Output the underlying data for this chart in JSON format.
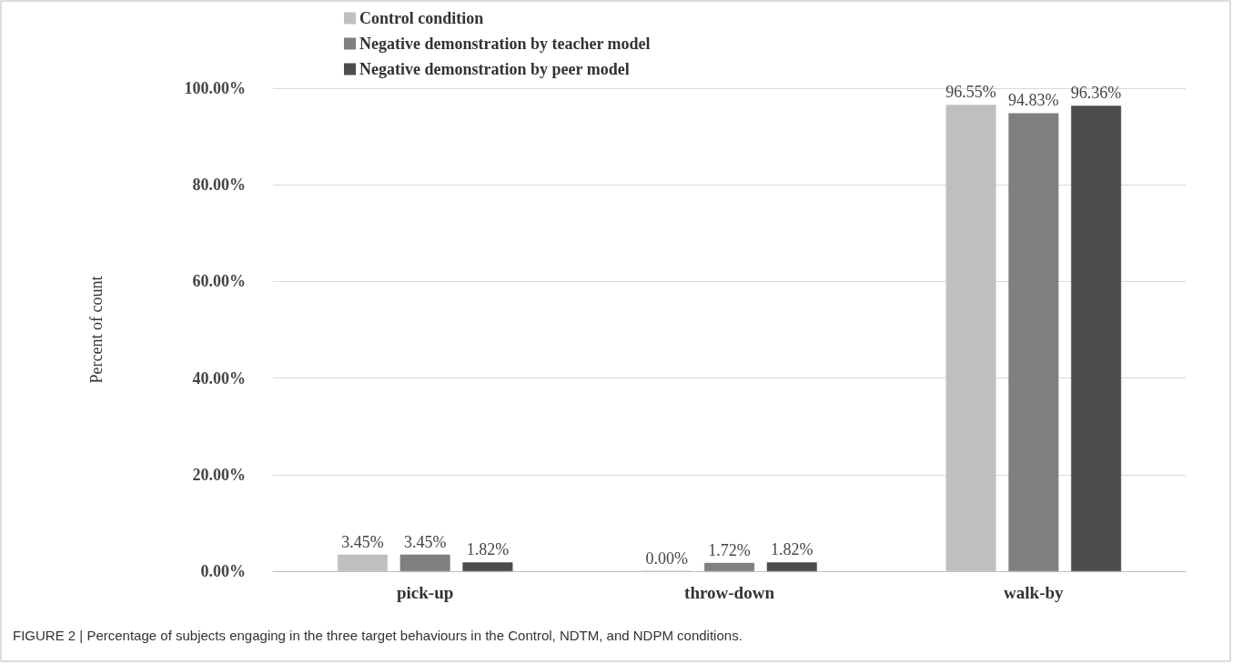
{
  "chart_data": {
    "type": "bar",
    "ylabel": "Percent of count",
    "categories": [
      "pick-up",
      "throw-down",
      "walk-by"
    ],
    "series": [
      {
        "name": "Control condition",
        "color": "#bfbfbf",
        "values": [
          3.45,
          0,
          96.55
        ],
        "value_labels": [
          "3.45%",
          "0.00%",
          "96.55%"
        ]
      },
      {
        "name": "Negative demonstration by teacher model",
        "color": "#7f7f7f",
        "values": [
          3.45,
          1.72,
          94.83
        ],
        "value_labels": [
          "3.45%",
          "1.72%",
          "94.83%"
        ]
      },
      {
        "name": "Negative demonstration by peer model",
        "color": "#4d4d4d",
        "values": [
          1.82,
          1.82,
          96.36
        ],
        "value_labels": [
          "1.82%",
          "1.82%",
          "96.36%"
        ]
      }
    ],
    "ylim": [
      0,
      100
    ],
    "yticks": [
      {
        "value": 0,
        "label": "0.00%"
      },
      {
        "value": 20,
        "label": "20.00%"
      },
      {
        "value": 40,
        "label": "40.00%"
      },
      {
        "value": 60,
        "label": "60.00%"
      },
      {
        "value": 80,
        "label": "80.00%"
      },
      {
        "value": 100,
        "label": "100.00%"
      }
    ],
    "grid": "y",
    "legend": "top",
    "annotations": [
      "FIGURE 2 | Percentage of subjects engaging in the three target behaviours in the Control, NDTM, and NDPM conditions."
    ]
  }
}
